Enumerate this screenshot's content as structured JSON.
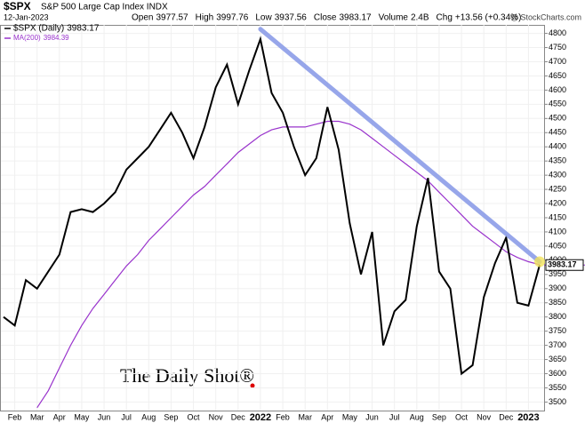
{
  "chart_data": {
    "type": "line",
    "header": {
      "symbol": "$SPX",
      "name": "S&P 500 Large Cap Index INDX",
      "date": "12-Jan-2023",
      "stats": [
        {
          "label": "Open",
          "value": "3977.57"
        },
        {
          "label": "High",
          "value": "3997.76"
        },
        {
          "label": "Low",
          "value": "3937.56"
        },
        {
          "label": "Close",
          "value": "3983.17"
        },
        {
          "label": "Volume",
          "value": "2.4B"
        },
        {
          "label": "Chg",
          "value": "+13.56 (+0.34%)"
        }
      ],
      "credit": "@ StockCharts.com"
    },
    "watermark": "The Daily Shot®",
    "categories": [
      null,
      "Feb",
      null,
      "Mar",
      null,
      "Apr",
      null,
      "May",
      null,
      "Jun",
      null,
      "Jul",
      null,
      "Aug",
      null,
      "Sep",
      null,
      "Oct",
      null,
      "Nov",
      null,
      "Dec",
      null,
      "2022",
      null,
      "Feb",
      null,
      "Mar",
      null,
      "Apr",
      null,
      "May",
      null,
      "Jun",
      null,
      "Jul",
      null,
      "Aug",
      null,
      "Sep",
      null,
      "Oct",
      null,
      "Nov",
      null,
      "Dec",
      null,
      "2023",
      null
    ],
    "series": [
      {
        "name": "$SPX (Daily)",
        "color": "#000000",
        "values": [
          3800,
          3770,
          3930,
          3900,
          3960,
          4020,
          4170,
          4180,
          4170,
          4200,
          4240,
          4320,
          4360,
          4400,
          4460,
          4520,
          4450,
          4360,
          4470,
          4610,
          4690,
          4550,
          4670,
          4780,
          4590,
          4520,
          4400,
          4300,
          4360,
          4540,
          4390,
          4130,
          3950,
          4100,
          3700,
          3820,
          3860,
          4120,
          4290,
          3960,
          3900,
          3600,
          3630,
          3870,
          3990,
          4080,
          3850,
          3840,
          3983.17
        ]
      },
      {
        "name": "MA(200)",
        "color": "#9933cc",
        "values": [
          null,
          null,
          null,
          3480,
          3540,
          3620,
          3700,
          3770,
          3830,
          3880,
          3930,
          3980,
          4020,
          4070,
          4110,
          4150,
          4190,
          4230,
          4260,
          4300,
          4340,
          4380,
          4410,
          4440,
          4460,
          4470,
          4470,
          4470,
          4480,
          4490,
          4490,
          4480,
          4460,
          4430,
          4400,
          4370,
          4340,
          4310,
          4280,
          4240,
          4200,
          4160,
          4120,
          4090,
          4060,
          4030,
          4010,
          3995,
          3984.39
        ]
      }
    ],
    "trendline": {
      "color": "#8c9de8",
      "from_category": 23,
      "from": 4815,
      "to_category": 48,
      "to": 3995
    },
    "ylim": [
      3470,
      4830
    ],
    "yticks": [
      3500,
      3550,
      3600,
      3650,
      3700,
      3750,
      3800,
      3850,
      3900,
      3950,
      4000,
      4050,
      4100,
      4150,
      4200,
      4250,
      4300,
      4350,
      4400,
      4450,
      4500,
      4550,
      4600,
      4650,
      4700,
      4750,
      4800
    ],
    "grid": true
  }
}
